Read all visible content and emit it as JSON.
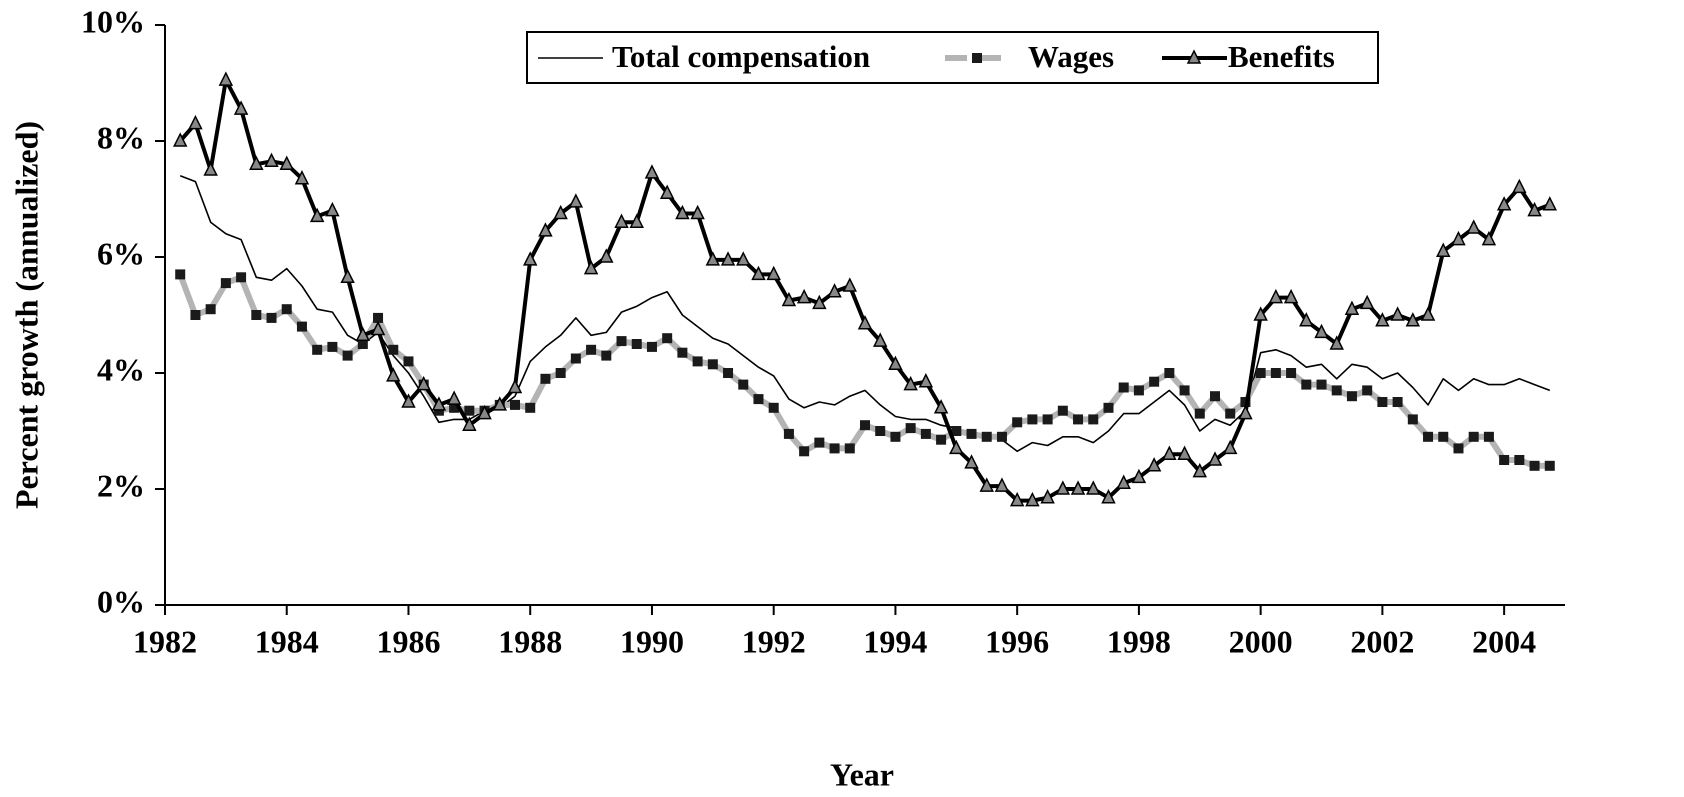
{
  "chart_data": {
    "type": "line",
    "y_label": "Percent growth (annualized)",
    "x_label": "Year",
    "x": [
      1982.25,
      1982.5,
      1982.75,
      1983,
      1983.25,
      1983.5,
      1983.75,
      1984,
      1984.25,
      1984.5,
      1984.75,
      1985,
      1985.25,
      1985.5,
      1985.75,
      1986,
      1986.25,
      1986.5,
      1986.75,
      1987,
      1987.25,
      1987.5,
      1987.75,
      1988,
      1988.25,
      1988.5,
      1988.75,
      1989,
      1989.25,
      1989.5,
      1989.75,
      1990,
      1990.25,
      1990.5,
      1990.75,
      1991,
      1991.25,
      1991.5,
      1991.75,
      1992,
      1992.25,
      1992.5,
      1992.75,
      1993,
      1993.25,
      1993.5,
      1993.75,
      1994,
      1994.25,
      1994.5,
      1994.75,
      1995,
      1995.25,
      1995.5,
      1995.75,
      1996,
      1996.25,
      1996.5,
      1996.75,
      1997,
      1997.25,
      1997.5,
      1997.75,
      1998,
      1998.25,
      1998.5,
      1998.75,
      1999,
      1999.25,
      1999.5,
      1999.75,
      2000,
      2000.25,
      2000.5,
      2000.75,
      2001,
      2001.25,
      2001.5,
      2001.75,
      2002,
      2002.25,
      2002.5,
      2002.75,
      2003,
      2003.25,
      2003.5,
      2003.75,
      2004,
      2004.25,
      2004.5,
      2004.75
    ],
    "series": [
      {
        "name": "Total compensation",
        "color": "#000000",
        "values": [
          7.4,
          7.3,
          6.6,
          6.4,
          6.3,
          5.65,
          5.6,
          5.8,
          5.5,
          5.1,
          5.05,
          4.65,
          4.5,
          4.7,
          4.3,
          4.0,
          3.6,
          3.15,
          3.2,
          3.2,
          3.35,
          3.4,
          3.6,
          4.2,
          4.45,
          4.65,
          4.95,
          4.65,
          4.7,
          5.05,
          5.15,
          5.3,
          5.4,
          5.0,
          4.8,
          4.6,
          4.5,
          4.3,
          4.1,
          3.95,
          3.55,
          3.4,
          3.5,
          3.45,
          3.6,
          3.7,
          3.45,
          3.25,
          3.2,
          3.2,
          3.1,
          3.05,
          2.95,
          2.9,
          2.85,
          2.65,
          2.8,
          2.75,
          2.9,
          2.9,
          2.8,
          3.0,
          3.3,
          3.3,
          3.5,
          3.7,
          3.45,
          3.0,
          3.2,
          3.1,
          3.35,
          4.35,
          4.4,
          4.3,
          4.1,
          4.15,
          3.9,
          4.15,
          4.1,
          3.9,
          4.0,
          3.75,
          3.45,
          3.9,
          3.7,
          3.9,
          3.8,
          3.8,
          3.9,
          3.8,
          3.7
        ]
      },
      {
        "name": "Wages",
        "color": "#b4b4b4",
        "values": [
          5.7,
          5.0,
          5.1,
          5.55,
          5.65,
          5.0,
          4.95,
          5.1,
          4.8,
          4.4,
          4.45,
          4.3,
          4.5,
          4.95,
          4.4,
          4.2,
          3.8,
          3.35,
          3.4,
          3.35,
          3.35,
          3.45,
          3.45,
          3.4,
          3.9,
          4.0,
          4.25,
          4.4,
          4.3,
          4.55,
          4.5,
          4.45,
          4.6,
          4.35,
          4.2,
          4.15,
          4.0,
          3.8,
          3.55,
          3.4,
          2.95,
          2.65,
          2.8,
          2.7,
          2.7,
          3.1,
          3.0,
          2.9,
          3.05,
          2.95,
          2.85,
          3.0,
          2.95,
          2.9,
          2.9,
          3.15,
          3.2,
          3.2,
          3.35,
          3.2,
          3.2,
          3.4,
          3.75,
          3.7,
          3.85,
          4.0,
          3.7,
          3.3,
          3.6,
          3.3,
          3.5,
          4.0,
          4.0,
          4.0,
          3.8,
          3.8,
          3.7,
          3.6,
          3.7,
          3.5,
          3.5,
          3.2,
          2.9,
          2.9,
          2.7,
          2.9,
          2.9,
          2.5,
          2.5,
          2.4,
          2.4
        ]
      },
      {
        "name": "Benefits",
        "color": "#000000",
        "values": [
          8.0,
          8.3,
          7.5,
          9.05,
          8.55,
          7.6,
          7.65,
          7.6,
          7.35,
          6.7,
          6.8,
          5.65,
          4.65,
          4.75,
          3.95,
          3.5,
          3.8,
          3.45,
          3.55,
          3.1,
          3.3,
          3.45,
          3.75,
          5.95,
          6.45,
          6.75,
          6.95,
          5.8,
          6.0,
          6.6,
          6.6,
          7.45,
          7.1,
          6.75,
          6.75,
          5.95,
          5.95,
          5.95,
          5.7,
          5.7,
          5.25,
          5.3,
          5.2,
          5.4,
          5.5,
          4.85,
          4.55,
          4.15,
          3.8,
          3.85,
          3.4,
          2.7,
          2.45,
          2.05,
          2.05,
          1.8,
          1.8,
          1.85,
          2.0,
          2.0,
          2.0,
          1.85,
          2.1,
          2.2,
          2.4,
          2.6,
          2.6,
          2.3,
          2.5,
          2.7,
          3.3,
          5.0,
          5.3,
          5.3,
          4.9,
          4.7,
          4.5,
          5.1,
          5.2,
          4.9,
          5.0,
          4.9,
          5.0,
          6.1,
          6.3,
          6.5,
          6.3,
          6.9,
          7.2,
          6.8,
          6.9
        ]
      }
    ],
    "xlim": [
      1982,
      2005
    ],
    "xticks": [
      1982,
      1984,
      1986,
      1988,
      1990,
      1992,
      1994,
      1996,
      1998,
      2000,
      2002,
      2004
    ],
    "ylim": [
      0,
      10
    ],
    "yticks": [
      {
        "value": 0,
        "label": "0%"
      },
      {
        "value": 2,
        "label": "2%"
      },
      {
        "value": 4,
        "label": "4%"
      },
      {
        "value": 6,
        "label": "6%"
      },
      {
        "value": 8,
        "label": "8%"
      },
      {
        "value": 10,
        "label": "10%"
      }
    ],
    "legend": "top"
  }
}
